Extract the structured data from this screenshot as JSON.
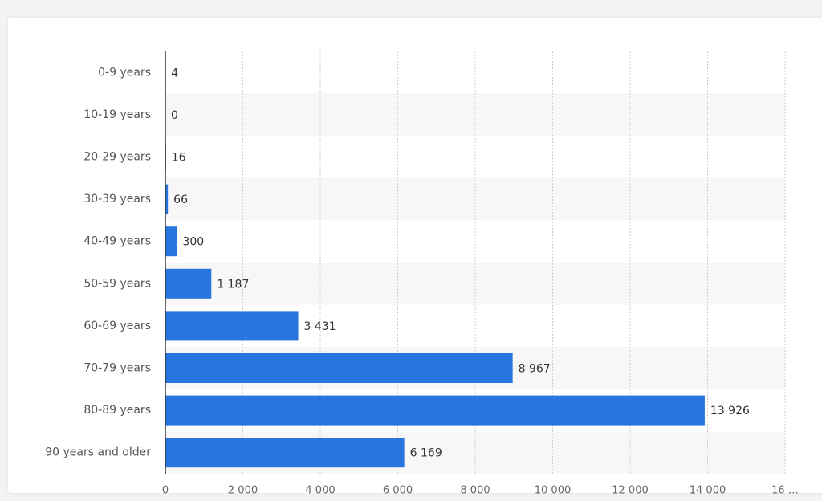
{
  "chart_data": {
    "type": "bar",
    "orientation": "horizontal",
    "categories": [
      "0-9 years",
      "10-19 years",
      "20-29 years",
      "30-39 years",
      "40-49 years",
      "50-59 years",
      "60-69 years",
      "70-79 years",
      "80-89 years",
      "90 years and older"
    ],
    "values": [
      4,
      0,
      16,
      66,
      300,
      1187,
      3431,
      8967,
      13926,
      6169
    ],
    "value_labels": [
      "4",
      "0",
      "16",
      "66",
      "300",
      "1 187",
      "3 431",
      "8 967",
      "13 926",
      "6 169"
    ],
    "color": "#2876dd",
    "xlim": [
      0,
      16000
    ],
    "xticks": [
      0,
      {
        "value": 2000,
        "label": "2 000"
      },
      {
        "value": 4000,
        "label": "4 000"
      },
      {
        "value": 6000,
        "label": "6 000"
      },
      {
        "value": 8000,
        "label": "8 000"
      },
      {
        "value": 10000,
        "label": "10 000"
      },
      {
        "value": 12000,
        "label": "12 000"
      },
      {
        "value": 14000,
        "label": "14 000"
      },
      {
        "value": 16000,
        "label": "16 …"
      }
    ],
    "grid": true
  }
}
